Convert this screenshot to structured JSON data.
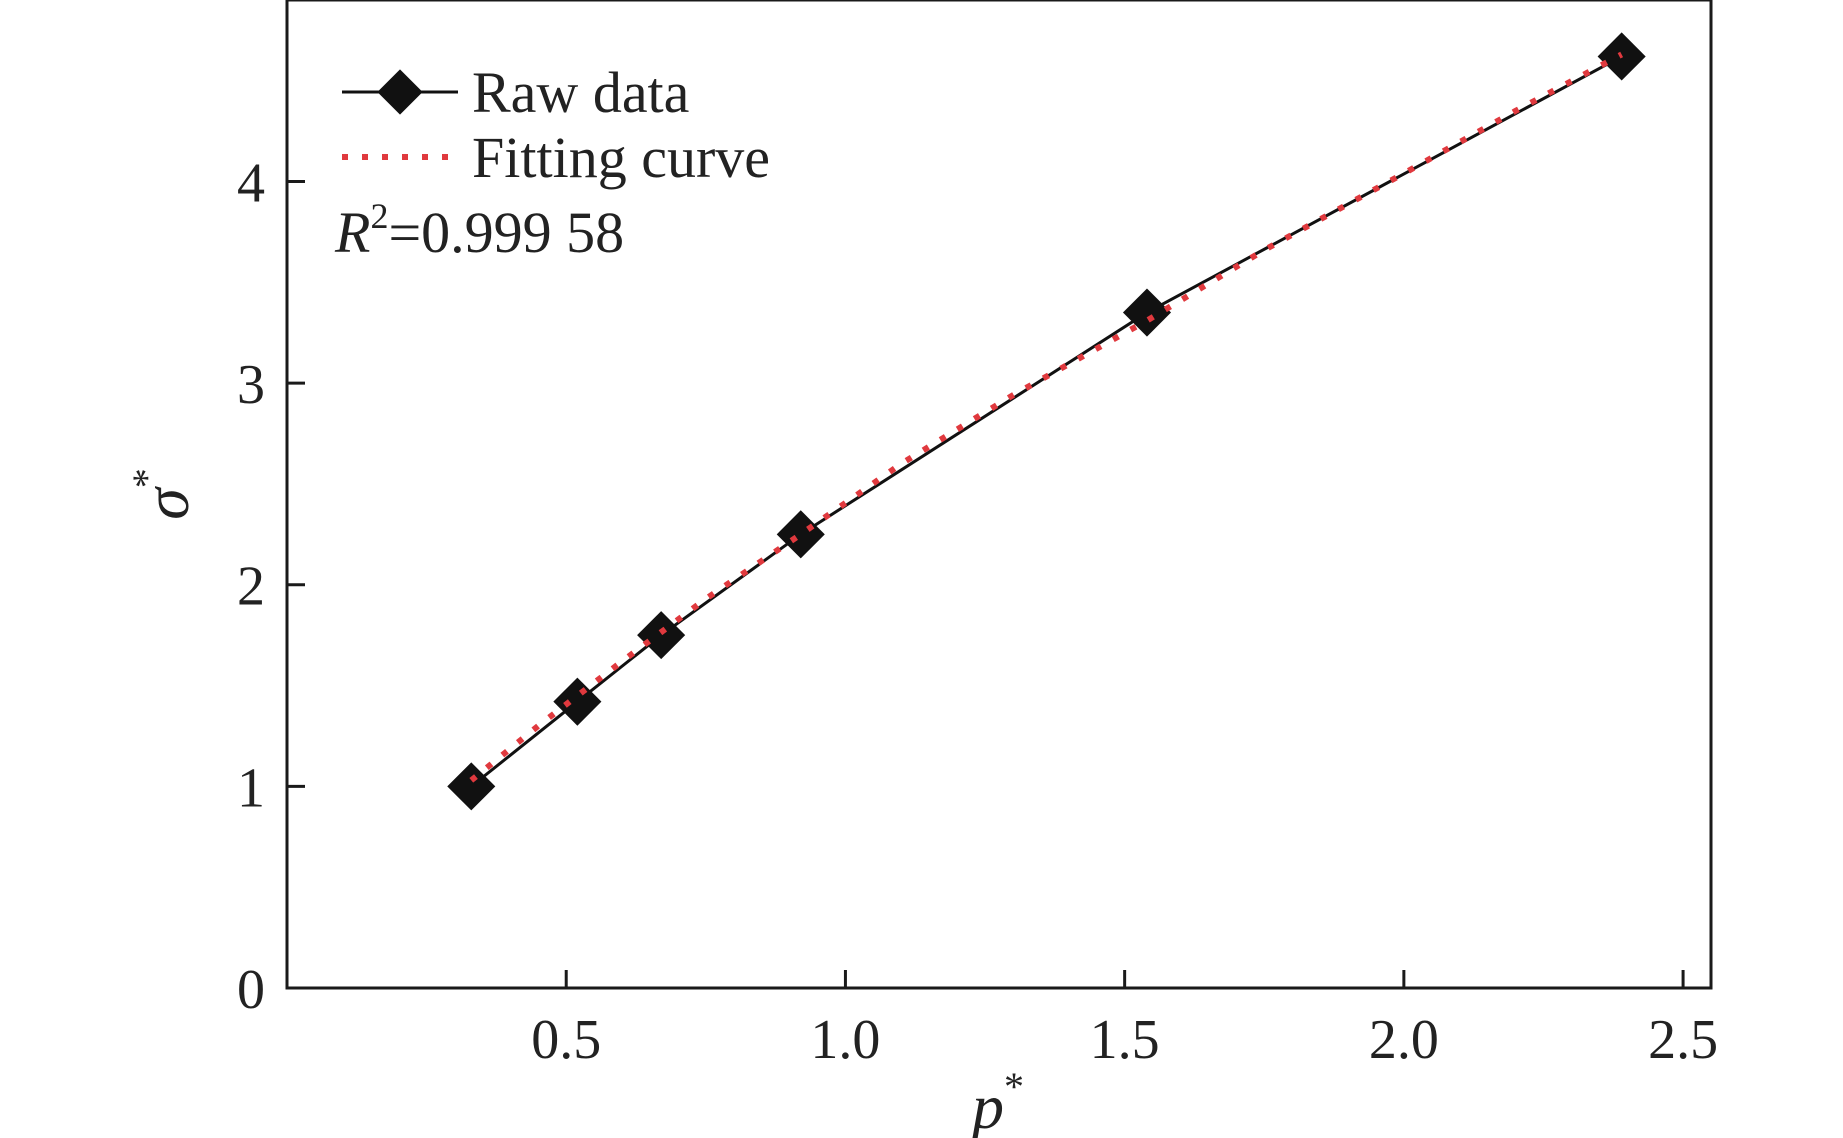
{
  "chart_data": {
    "type": "line",
    "xlabel": "p",
    "xlabel_sup": "*",
    "ylabel": "σ",
    "ylabel_sup": "*",
    "xlim": [
      0.0,
      2.55
    ],
    "ylim": [
      0,
      4.9
    ],
    "xticks": [
      0.5,
      1.0,
      1.5,
      2.0,
      2.5
    ],
    "xtick_labels": [
      "0.5",
      "1.0",
      "1.5",
      "2.0",
      "2.5"
    ],
    "yticks": [
      0,
      1,
      2,
      3,
      4
    ],
    "ytick_labels": [
      "0",
      "1",
      "2",
      "3",
      "4"
    ],
    "grid": false,
    "legend_position": "top-left",
    "series": [
      {
        "name": "Raw data",
        "color": "#111111",
        "marker": "diamond",
        "line_style": "solid",
        "x": [
          0.33,
          0.52,
          0.67,
          0.92,
          1.54,
          2.39
        ],
        "y": [
          1.0,
          1.42,
          1.75,
          2.25,
          3.35,
          4.62
        ]
      },
      {
        "name": "Fitting curve",
        "color": "#e0393e",
        "line_style": "dotted",
        "x": [
          0.33,
          0.45,
          0.6,
          0.75,
          0.92,
          1.1,
          1.3,
          1.54,
          1.75,
          2.0,
          2.2,
          2.39
        ],
        "y": [
          1.03,
          1.3,
          1.62,
          1.93,
          2.25,
          2.6,
          2.94,
          3.31,
          3.66,
          4.04,
          4.35,
          4.63
        ]
      }
    ],
    "annotation": {
      "label": "R",
      "sup": "2",
      "value_text": "=0.999 58"
    }
  }
}
